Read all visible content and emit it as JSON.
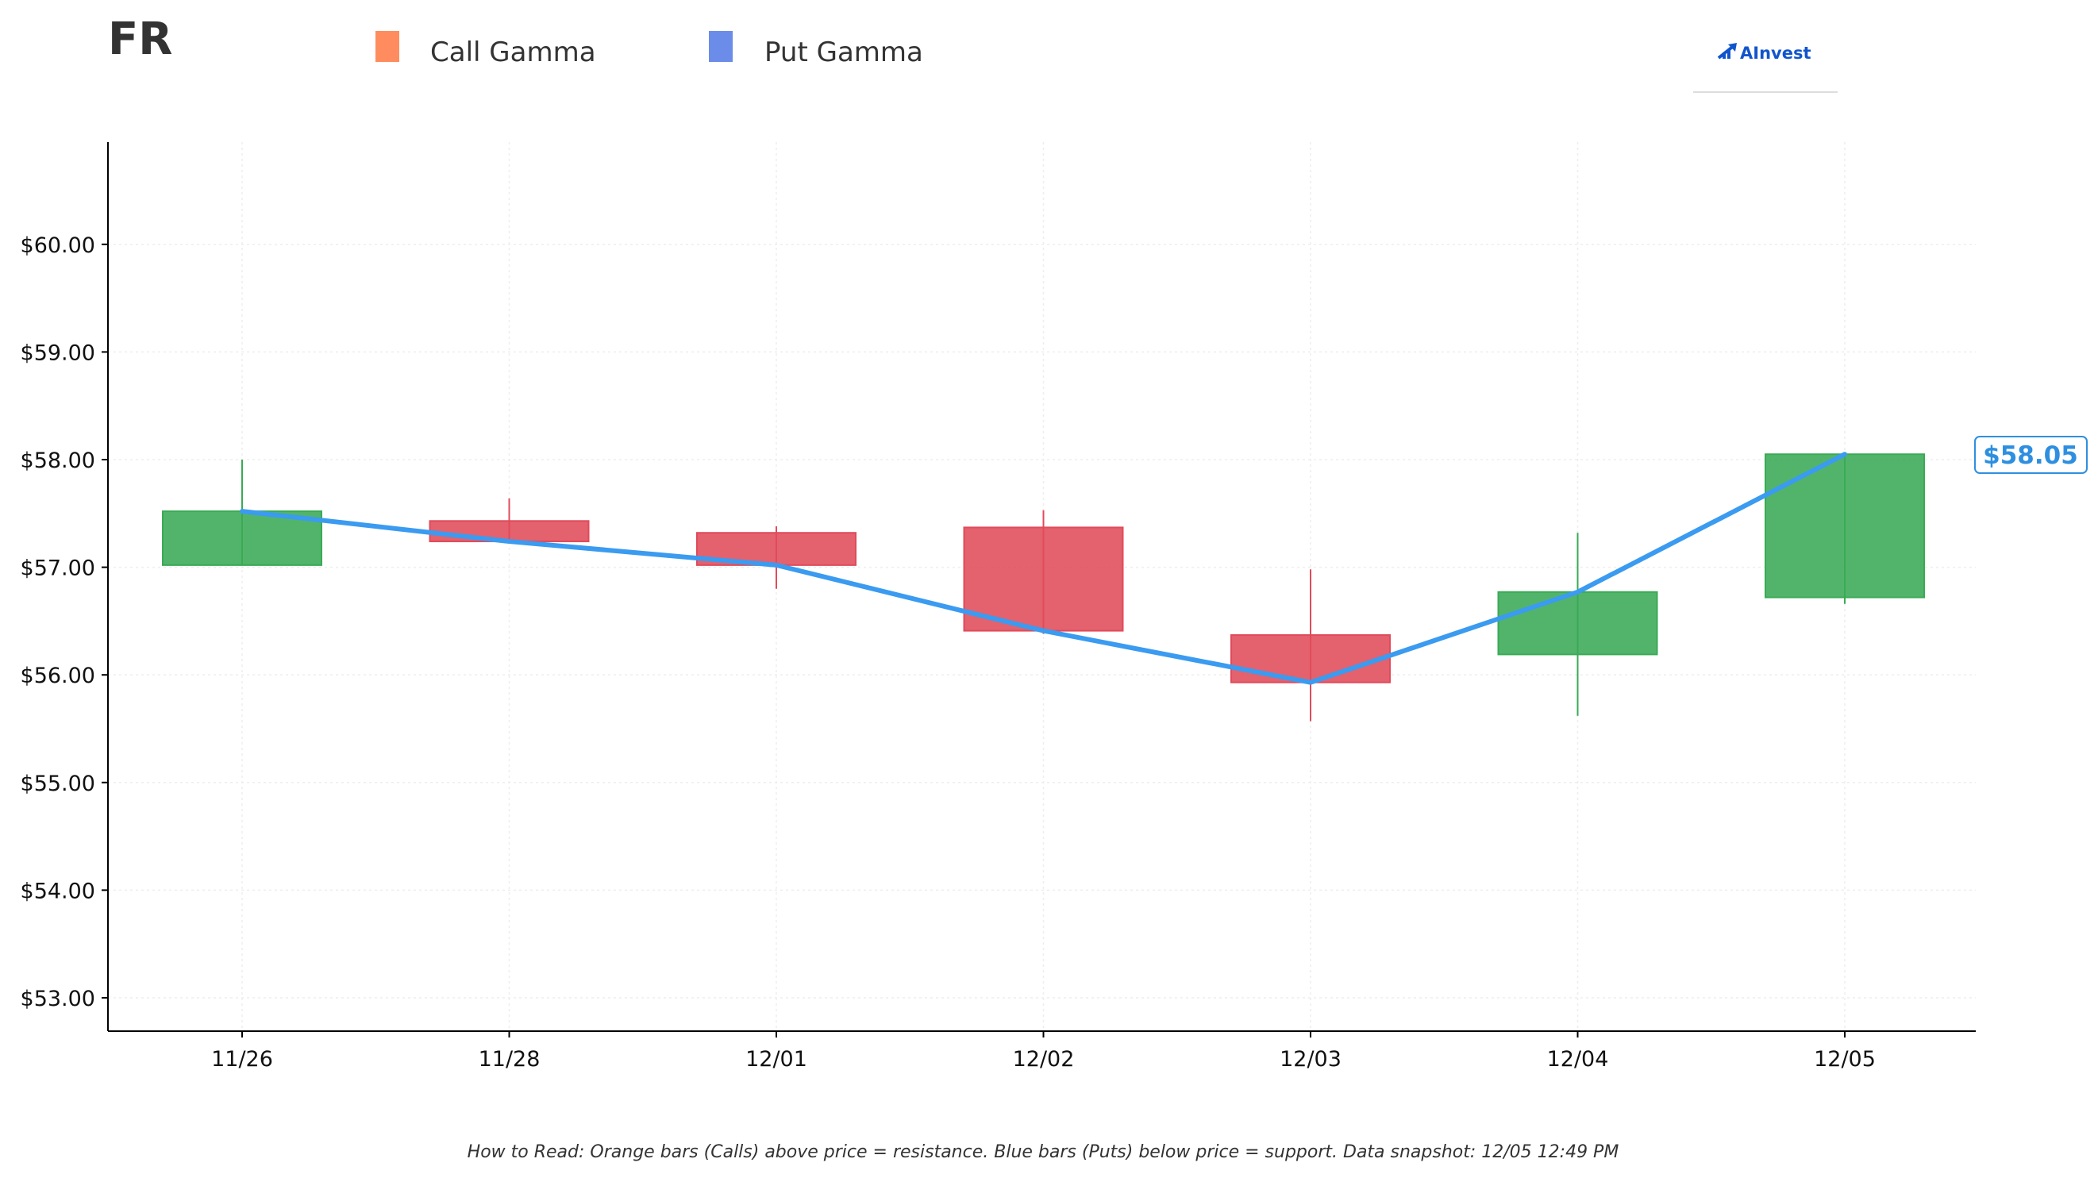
{
  "ticker": "FR",
  "legend": [
    {
      "label": "Call Gamma",
      "color": "#ff8c5e"
    },
    {
      "label": "Put Gamma",
      "color": "#6b8ce8"
    }
  ],
  "logo": {
    "text": "AInvest",
    "icon": "ainvest-logo-icon",
    "color": "#1155cc"
  },
  "last_price_label": "$58.05",
  "footnote": "How to Read: Orange bars (Calls) above price = resistance. Blue bars (Puts) below price = support. Data snapshot: 12/05 12:49 PM",
  "colors": {
    "up": "#3aaa55",
    "down": "#e04b5a",
    "price_line": "#3a9bf0",
    "axis": "#000000",
    "grid": "#eeeeee"
  },
  "chart_data": {
    "type": "candlestick",
    "title": "FR",
    "categories": [
      "11/26",
      "11/28",
      "12/01",
      "12/02",
      "12/03",
      "12/04",
      "12/05"
    ],
    "candles": [
      {
        "date": "11/26",
        "open": 57.02,
        "high": 58.0,
        "low": 57.02,
        "close": 57.52
      },
      {
        "date": "11/28",
        "open": 57.43,
        "high": 57.64,
        "low": 57.24,
        "close": 57.24
      },
      {
        "date": "12/01",
        "open": 57.32,
        "high": 57.38,
        "low": 56.8,
        "close": 57.02
      },
      {
        "date": "12/02",
        "open": 57.37,
        "high": 57.53,
        "low": 56.38,
        "close": 56.41
      },
      {
        "date": "12/03",
        "open": 56.37,
        "high": 56.98,
        "low": 55.57,
        "close": 55.93
      },
      {
        "date": "12/04",
        "open": 56.19,
        "high": 57.32,
        "low": 55.62,
        "close": 56.77
      },
      {
        "date": "12/05",
        "open": 56.72,
        "high": 58.05,
        "low": 56.66,
        "close": 58.05
      }
    ],
    "price_line": [
      57.52,
      57.24,
      57.02,
      56.41,
      55.93,
      56.77,
      58.05
    ],
    "yticks": [
      53,
      54,
      55,
      56,
      57,
      58,
      59,
      60
    ],
    "ytick_labels": [
      "$53.00",
      "$54.00",
      "$55.00",
      "$56.00",
      "$57.00",
      "$58.00",
      "$59.00",
      "$60.00"
    ],
    "ylim": [
      52.69,
      60.95
    ],
    "grid": true,
    "legend_position": "top-left"
  }
}
